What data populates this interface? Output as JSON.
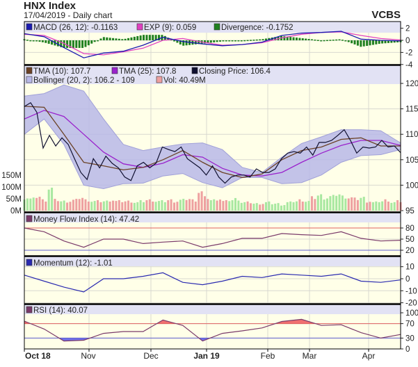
{
  "header": {
    "title": "HNX Index",
    "subtitle": "17/04/2019 - Daily chart",
    "brand": "VCBS"
  },
  "colors": {
    "plot_bg": "#FFFFE8",
    "legend_bg": "#E2E2F4",
    "macd": "#1A1AB0",
    "exp": "#E040C0",
    "divergence": "#208020",
    "tma10": "#6B4226",
    "tma25": "#9A22CC",
    "close": "#101030",
    "bollinger": "#B8B8E8",
    "vol_up": "#A8E8A0",
    "vol_down": "#EEA0A0",
    "mfi": "#7A3A6A",
    "momentum": "#2A2AB0",
    "rsi": "#7A3A6A",
    "upper_line": "#E06060",
    "lower_line": "#6060D0"
  },
  "legends": {
    "macd": "MACD (26, 12): -0.1163",
    "exp": "EXP (9): 0.059",
    "divergence": "Divergence: -0.1752",
    "tma10": "TMA (10): 107.7",
    "tma25": "TMA (25): 107.8",
    "close": "Closing Price: 106.4",
    "bollinger": "Bollinger (20, 2): 106.2 - 109",
    "vol": "Vol: 40.49M",
    "mfi": "Money Flow Index (14): 47.42",
    "momentum": "Momentum (12): -1.01",
    "rsi": "RSI (14): 40.07"
  },
  "chart_data": [
    {
      "type": "bar",
      "panel": "macd",
      "yticks": [
        "2",
        "0",
        "-2",
        "-4"
      ],
      "ylim": [
        -4,
        2.5
      ],
      "series": [
        {
          "name": "MACD (26, 12)",
          "values": [
            1.1,
            0.6,
            -1.2,
            -2.9,
            -2.1,
            -1.8,
            -0.8,
            0.5,
            -0.2,
            -0.6,
            -0.9,
            -0.7,
            -0.3,
            0.8,
            1.2,
            1.3,
            1.5,
            0.2,
            0,
            -0.1
          ]
        },
        {
          "name": "EXP (9)",
          "values": [
            1.0,
            0.8,
            -0.5,
            -2.2,
            -2.4,
            -1.9,
            -1.3,
            0,
            0.3,
            -0.3,
            -0.8,
            -0.7,
            -0.4,
            0.4,
            1.0,
            1.3,
            1.4,
            0.8,
            0.3,
            0.06
          ]
        },
        {
          "name": "Divergence",
          "values": [
            0.1,
            -0.2,
            -0.7,
            -0.7,
            0.3,
            0.1,
            0.5,
            0.5,
            -0.5,
            -0.3,
            -0.1,
            0,
            0.1,
            0.4,
            0.2,
            0,
            0.1,
            -0.6,
            -0.3,
            -0.17
          ]
        }
      ]
    },
    {
      "type": "line",
      "panel": "price",
      "yticks": [
        "120",
        "115",
        "110",
        "105",
        "100",
        "95"
      ],
      "ylim": [
        95,
        120
      ],
      "vol_ticks": [
        "150M",
        "100M",
        "50M",
        "0M"
      ],
      "series": [
        {
          "name": "Closing Price",
          "values": [
            115.45,
            116.2,
            114.3,
            107.3,
            109.8,
            107.7,
            109.3,
            108,
            105.2,
            102.5,
            101.1,
            105.2,
            103.4,
            105.7,
            104.3,
            103.4,
            101.6,
            100.9,
            103.8,
            104.5,
            103.4,
            104.3,
            107.5,
            107,
            106.6,
            107.5,
            105.2,
            104.3,
            103.4,
            102,
            103.8,
            101.6,
            100.4,
            101.6,
            102,
            102,
            101.6,
            103.2,
            102.5,
            102.5,
            103.2,
            105.2,
            106.3,
            106.6,
            106.3,
            107.5,
            105.9,
            108.4,
            108.4,
            108.8,
            109.8,
            110.9,
            108.8,
            106.3,
            107.5,
            107.3,
            107.5,
            108.8,
            107.5,
            107.7,
            106.4
          ]
        },
        {
          "name": "TMA (10)",
          "values": [
            115.5,
            115.3,
            110,
            104.5,
            103.8,
            103,
            103.5,
            105,
            106.8,
            104.5,
            102.5,
            101.5,
            102.2,
            105,
            106.8,
            107.5,
            109,
            109.3,
            107.7,
            107.7
          ]
        },
        {
          "name": "TMA (25)",
          "values": [
            113,
            114.7,
            113.5,
            110,
            106.5,
            104.2,
            103.5,
            104.3,
            106,
            105.5,
            103.3,
            102,
            101.8,
            102.5,
            104.5,
            106.3,
            107.8,
            108.8,
            108.8,
            107.8
          ]
        },
        {
          "name": "Bollinger upper",
          "values": [
            117.5,
            118,
            119.7,
            118.5,
            113,
            108,
            106.8,
            107.5,
            108.1,
            108.3,
            107,
            103.5,
            102.5,
            105.5,
            108.2,
            109.5,
            110.9,
            110.9,
            110.7,
            108.3
          ]
        },
        {
          "name": "Bollinger lower",
          "values": [
            110,
            113,
            108,
            100,
            99.3,
            100.3,
            100.4,
            101.8,
            102.3,
            100.5,
            99.5,
            101.5,
            101.5,
            100.3,
            100.5,
            102,
            104.5,
            105.8,
            106,
            107
          ]
        },
        {
          "name": "Vol",
          "unit": "M",
          "values": [
            55,
            50,
            60,
            45,
            95,
            45,
            40,
            40,
            45,
            55,
            45,
            40,
            40,
            40,
            45,
            40,
            40,
            40,
            35,
            40,
            45,
            40,
            40,
            45,
            40,
            45,
            50,
            45,
            80,
            55,
            45,
            50,
            40,
            45,
            50,
            35,
            35,
            30,
            30,
            35,
            30,
            25,
            35,
            40,
            45,
            40,
            55,
            65,
            55,
            60,
            70,
            60,
            55,
            50,
            55,
            40,
            35,
            40,
            45,
            35,
            40
          ]
        }
      ]
    },
    {
      "type": "line",
      "panel": "mfi",
      "yticks": [
        "80",
        "50",
        "20"
      ],
      "ylim": [
        5,
        95
      ],
      "series": [
        {
          "name": "Money Flow Index (14)",
          "values": [
            80,
            70,
            45,
            28,
            50,
            50,
            38,
            42,
            45,
            28,
            38,
            52,
            52,
            65,
            62,
            60,
            70,
            52,
            45,
            47
          ]
        }
      ]
    },
    {
      "type": "line",
      "panel": "momentum",
      "yticks": [
        "10",
        "0",
        "-10",
        "-20"
      ],
      "ylim": [
        -20,
        10
      ],
      "series": [
        {
          "name": "Momentum (12)",
          "values": [
            3,
            -2,
            -7,
            -11,
            0,
            0,
            2,
            5,
            -3,
            -5,
            -2,
            2,
            1,
            4,
            3,
            2,
            4,
            -2,
            -3,
            -1
          ]
        }
      ]
    },
    {
      "type": "area",
      "panel": "rsi",
      "yticks": [
        "100",
        "70",
        "30",
        "0"
      ],
      "ylim": [
        0,
        100
      ],
      "series": [
        {
          "name": "RSI (14)",
          "values": [
            77,
            55,
            22,
            24,
            43,
            48,
            48,
            80,
            65,
            22,
            43,
            50,
            58,
            76,
            82,
            65,
            67,
            45,
            30,
            40
          ]
        }
      ]
    }
  ],
  "xaxis": {
    "labels": [
      "Oct 18",
      "Nov",
      "Dec",
      "Jan 19",
      "Feb",
      "Mar",
      "Apr"
    ]
  }
}
